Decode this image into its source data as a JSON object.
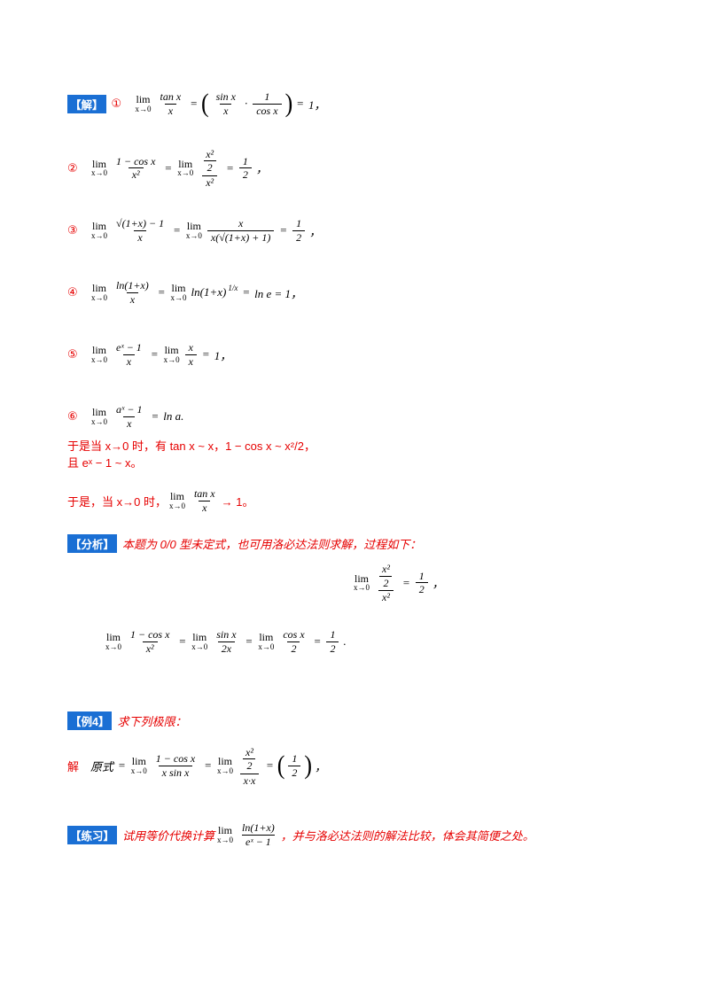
{
  "colors": {
    "red": "#e60000",
    "blue": "#1a6fd4",
    "page": "#ffffff"
  },
  "labels": {
    "solve": "【解】",
    "analysis": "【分析】",
    "example": "【例4】",
    "practice": "【练习】"
  },
  "solution": {
    "lines": [
      {
        "marker": "①",
        "tokens": [
          {
            "t": "lim",
            "sub": "x→0"
          },
          {
            "t": "frac",
            "n": "tan x",
            "d": "x"
          },
          {
            "t": "op",
            "v": "="
          },
          {
            "t": "big",
            "v": "("
          },
          {
            "t": "frac",
            "n": "sin x",
            "d": "x"
          },
          {
            "t": "op",
            "v": "·"
          },
          {
            "t": "frac",
            "n": "1",
            "d": "cos x"
          },
          {
            "t": "big",
            "v": ")"
          },
          {
            "t": "op",
            "v": "="
          },
          {
            "t": "txt",
            "v": "1，"
          }
        ]
      },
      {
        "marker": "②",
        "tokens": [
          {
            "t": "lim",
            "sub": "x→0"
          },
          {
            "t": "frac",
            "n": "1 − cos x",
            "d": "x²"
          },
          {
            "t": "op",
            "v": "="
          },
          {
            "t": "lim",
            "sub": "x→0"
          },
          {
            "t": "frac",
            "nf": {
              "n": "x²",
              "d": "2"
            },
            "d": "x²"
          },
          {
            "t": "op",
            "v": "="
          },
          {
            "t": "frac",
            "n": "1",
            "d": "2"
          },
          {
            "t": "txt",
            "v": "，"
          }
        ]
      },
      {
        "marker": "③",
        "tokens": [
          {
            "t": "lim",
            "sub": "x→0"
          },
          {
            "t": "frac",
            "n": "√(1+x) − 1",
            "d": "x"
          },
          {
            "t": "op",
            "v": "="
          },
          {
            "t": "lim",
            "sub": "x→0"
          },
          {
            "t": "frac",
            "n": "x",
            "d": "x(√(1+x) + 1)"
          },
          {
            "t": "op",
            "v": "="
          },
          {
            "t": "frac",
            "n": "1",
            "d": "2"
          },
          {
            "t": "txt",
            "v": "，"
          }
        ]
      },
      {
        "marker": "④",
        "tokens": [
          {
            "t": "lim",
            "sub": "x→0"
          },
          {
            "t": "frac",
            "n": "ln(1+x)",
            "d": "x"
          },
          {
            "t": "op",
            "v": "="
          },
          {
            "t": "lim",
            "sub": "x→0"
          },
          {
            "t": "txt",
            "v": "ln(1+x)"
          },
          {
            "t": "sup",
            "v": "1/x"
          },
          {
            "t": "op",
            "v": "="
          },
          {
            "t": "txt",
            "v": "ln e = 1，"
          }
        ]
      },
      {
        "marker": "⑤",
        "tokens": [
          {
            "t": "lim",
            "sub": "x→0"
          },
          {
            "t": "frac",
            "n": "eˣ − 1",
            "d": "x"
          },
          {
            "t": "op",
            "v": "="
          },
          {
            "t": "lim",
            "sub": "x→0"
          },
          {
            "t": "frac",
            "n": "x",
            "d": "x"
          },
          {
            "t": "op",
            "v": "="
          },
          {
            "t": "txt",
            "v": "1，"
          }
        ]
      },
      {
        "marker": "⑥",
        "tokens": [
          {
            "t": "lim",
            "sub": "x→0"
          },
          {
            "t": "frac",
            "n": "aˣ − 1",
            "d": "x"
          },
          {
            "t": "op",
            "v": "="
          },
          {
            "t": "txt",
            "v": "ln a."
          }
        ]
      }
    ]
  },
  "red": {
    "para1": "于是当 x→0 时，有 tan x ~ x，1 − cos x ~ x²/2，",
    "para2": "且 eˣ − 1 ~ x。",
    "para3_before": "于是，当 x→0 时，",
    "para3_tokens": [
      {
        "t": "lim",
        "sub": "x→0"
      },
      {
        "t": "frac",
        "n": "tan x",
        "d": "x"
      }
    ],
    "para3_after": "→ 1。"
  },
  "analysis": {
    "text": "本题为 0/0 型未定式，也可用洛必达法则求解，过程如下：",
    "display1_tokens": [
      {
        "t": "lim",
        "sub": "x→0"
      },
      {
        "t": "frac",
        "nf": {
          "n": "x²",
          "d": "2"
        },
        "d": "x²"
      },
      {
        "t": "op",
        "v": "="
      },
      {
        "t": "frac",
        "n": "1",
        "d": "2"
      },
      {
        "t": "txt",
        "v": "，"
      }
    ],
    "display2_tokens": [
      {
        "t": "lim",
        "sub": "x→0"
      },
      {
        "t": "frac",
        "n": "1 − cos x",
        "d": "x²"
      },
      {
        "t": "op",
        "v": "="
      },
      {
        "t": "lim",
        "sub": "x→0"
      },
      {
        "t": "frac",
        "n": "sin x",
        "d": "2x"
      },
      {
        "t": "op",
        "v": "="
      },
      {
        "t": "lim",
        "sub": "x→0"
      },
      {
        "t": "frac",
        "n": "cos x",
        "d": "2"
      },
      {
        "t": "op",
        "v": "="
      },
      {
        "t": "frac",
        "n": "1",
        "d": "2"
      },
      {
        "t": "txt",
        "v": "."
      }
    ]
  },
  "example": {
    "text": "求下列极限：",
    "solve_marker": "解",
    "tokens": [
      {
        "t": "txt",
        "v": "原式"
      },
      {
        "t": "op",
        "v": "="
      },
      {
        "t": "lim",
        "sub": "x→0"
      },
      {
        "t": "frac",
        "n": "1 − cos x",
        "d": "x sin x"
      },
      {
        "t": "op",
        "v": "="
      },
      {
        "t": "lim",
        "sub": "x→0"
      },
      {
        "t": "frac",
        "nf": {
          "n": "x²",
          "d": "2"
        },
        "d": "x·x"
      },
      {
        "t": "op",
        "v": "="
      },
      {
        "t": "big",
        "v": "("
      },
      {
        "t": "frac",
        "n": "1",
        "d": "2"
      },
      {
        "t": "big",
        "v": ")"
      },
      {
        "t": "txt",
        "v": "，"
      }
    ]
  },
  "practice": {
    "before": "试用等价代换计算",
    "tokens": [
      {
        "t": "lim",
        "sub": "x→0"
      },
      {
        "t": "frac",
        "n": "ln(1+x)",
        "d": "eˣ − 1"
      }
    ],
    "after": "，并与洛必达法则的解法比较，体会其简便之处。"
  }
}
